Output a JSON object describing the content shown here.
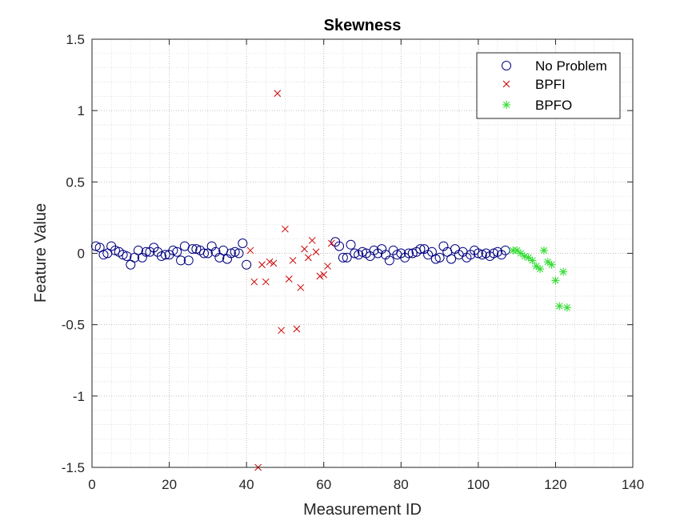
{
  "chart_data": {
    "type": "scatter",
    "title": "Skewness",
    "xlabel": "Measurement ID",
    "ylabel": "Feature Value",
    "xlim": [
      0,
      140
    ],
    "ylim": [
      -1.5,
      1.5
    ],
    "xticks": [
      0,
      20,
      40,
      60,
      80,
      100,
      120,
      140
    ],
    "yticks": [
      -1.5,
      -1,
      -0.5,
      0,
      0.5,
      1,
      1.5
    ],
    "xtick_labels": [
      "0",
      "20",
      "40",
      "60",
      "80",
      "100",
      "120",
      "140"
    ],
    "ytick_labels": [
      "-1.5",
      "-1",
      "-0.5",
      "0",
      "0.5",
      "1",
      "1.5"
    ],
    "grid": "major and minor, dotted",
    "legend_position": "top-right",
    "series": [
      {
        "name": "No Problem",
        "marker": "circle",
        "color": "#000080",
        "x": [
          1,
          2,
          3,
          4,
          5,
          6,
          7,
          8,
          9,
          10,
          11,
          12,
          13,
          14,
          15,
          16,
          17,
          18,
          19,
          20,
          21,
          22,
          23,
          24,
          25,
          26,
          27,
          28,
          29,
          30,
          31,
          32,
          33,
          34,
          35,
          36,
          37,
          38,
          39,
          40,
          63,
          64,
          65,
          66,
          67,
          68,
          69,
          70,
          71,
          72,
          73,
          74,
          75,
          76,
          77,
          78,
          79,
          80,
          81,
          82,
          83,
          84,
          85,
          86,
          87,
          88,
          89,
          90,
          91,
          92,
          93,
          94,
          95,
          96,
          97,
          98,
          99,
          100,
          101,
          102,
          103,
          104,
          105,
          106,
          107
        ],
        "y": [
          0.05,
          0.04,
          -0.01,
          0.0,
          0.05,
          0.02,
          0.01,
          -0.01,
          -0.02,
          -0.08,
          -0.03,
          0.02,
          -0.03,
          0.01,
          0.01,
          0.04,
          0.01,
          -0.02,
          -0.01,
          -0.01,
          0.02,
          0.01,
          -0.05,
          0.05,
          -0.05,
          0.03,
          0.03,
          0.02,
          0.0,
          0.0,
          0.05,
          0.01,
          -0.03,
          0.02,
          -0.04,
          0.0,
          0.01,
          0.0,
          0.07,
          -0.08,
          0.08,
          0.05,
          -0.03,
          -0.03,
          0.06,
          0.0,
          -0.01,
          0.01,
          0.0,
          -0.02,
          0.02,
          0.0,
          0.03,
          -0.01,
          -0.05,
          0.02,
          -0.01,
          0.0,
          -0.03,
          0.0,
          0.0,
          0.01,
          0.03,
          0.03,
          -0.01,
          0.01,
          -0.04,
          -0.03,
          0.05,
          0.01,
          -0.04,
          0.03,
          -0.01,
          0.01,
          -0.03,
          -0.01,
          0.02,
          0.0,
          -0.01,
          0.0,
          -0.02,
          0.0,
          0.01,
          -0.01,
          0.02
        ]
      },
      {
        "name": "BPFI",
        "marker": "x",
        "color": "#cc0000",
        "x": [
          41,
          42,
          43,
          44,
          45,
          46,
          47,
          48,
          49,
          50,
          51,
          52,
          53,
          54,
          55,
          56,
          57,
          58,
          59,
          60,
          61,
          62
        ],
        "y": [
          0.02,
          -0.2,
          -1.5,
          -0.08,
          -0.2,
          -0.06,
          -0.07,
          1.12,
          -0.54,
          0.17,
          -0.18,
          -0.05,
          -0.53,
          -0.24,
          0.03,
          -0.03,
          0.09,
          0.01,
          -0.16,
          -0.15,
          -0.09,
          0.07
        ]
      },
      {
        "name": "BPFO",
        "marker": "asterisk",
        "color": "#33dd33",
        "x": [
          109,
          110,
          111,
          112,
          113,
          114,
          115,
          116,
          117,
          118,
          119,
          120,
          121,
          122,
          123
        ],
        "y": [
          0.02,
          0.02,
          0.0,
          -0.02,
          -0.03,
          -0.05,
          -0.09,
          -0.11,
          0.02,
          -0.06,
          -0.08,
          -0.19,
          -0.37,
          -0.13,
          -0.38
        ]
      }
    ]
  }
}
